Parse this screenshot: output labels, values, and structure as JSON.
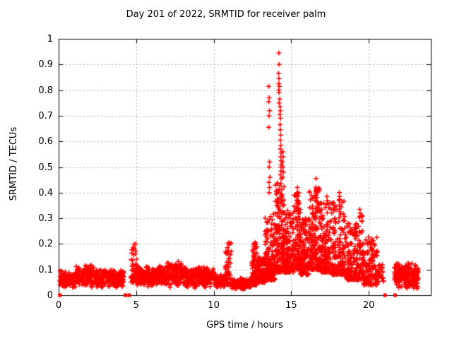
{
  "title": "Day 201 of 2022, SRMTID for receiver palm",
  "axes": {
    "x": {
      "label": "GPS time / hours"
    },
    "y": {
      "label": "SRMTID / TECUs"
    }
  },
  "chart_data": {
    "type": "scatter",
    "title": "Day 201 of 2022, SRMTID for receiver palm",
    "xlabel": "GPS time / hours",
    "ylabel": "SRMTID / TECUs",
    "xlim": [
      0,
      24
    ],
    "ylim": [
      0,
      1
    ],
    "xticks": {
      "values": [
        0,
        5,
        10,
        15,
        20
      ],
      "labels": [
        "0",
        "5",
        "10",
        "15",
        "20"
      ]
    },
    "yticks": {
      "values": [
        0,
        0.1,
        0.2,
        0.3,
        0.4,
        0.5,
        0.6,
        0.7,
        0.8,
        0.9,
        1
      ],
      "labels": [
        "0",
        "0.1",
        "0.2",
        "0.3",
        "0.4",
        "0.5",
        "0.6",
        "0.7",
        "0.8",
        "0.9",
        "1"
      ]
    },
    "grid": true,
    "legend": "none",
    "marker": "plus",
    "marker_size": 7,
    "marker_color": "#ff0000",
    "grid_color": "#b4b4b4",
    "border_color": "#000000",
    "seed": 1234,
    "band_segments": [
      {
        "x0": 0.07,
        "x1": 0.35,
        "n": 40,
        "ymin": 0.02,
        "ymax": 0.1,
        "dist": "tri"
      },
      {
        "x0": 0.35,
        "x1": 1.1,
        "n": 90,
        "ymin": 0.025,
        "ymax": 0.095,
        "dist": "tri"
      },
      {
        "x0": 1.1,
        "x1": 2.3,
        "n": 150,
        "ymin": 0.03,
        "ymax": 0.125,
        "dist": "tri",
        "columns": 26
      },
      {
        "x0": 2.3,
        "x1": 4.2,
        "n": 220,
        "ymin": 0.025,
        "ymax": 0.105,
        "dist": "tri",
        "columns": 40
      },
      {
        "x0": 4.65,
        "x1": 5.05,
        "n": 55,
        "ymin": 0.05,
        "ymax": 0.2,
        "dist": "low",
        "columns": 8
      },
      {
        "x0": 5.05,
        "x1": 7.0,
        "n": 240,
        "ymin": 0.03,
        "ymax": 0.12,
        "dist": "tri",
        "columns": 40
      },
      {
        "x0": 7.0,
        "x1": 8.1,
        "n": 140,
        "ymin": 0.03,
        "ymax": 0.145,
        "dist": "tri",
        "columns": 22
      },
      {
        "x0": 8.1,
        "x1": 10.1,
        "n": 240,
        "ymin": 0.025,
        "ymax": 0.115,
        "dist": "tri",
        "columns": 40
      },
      {
        "x0": 10.1,
        "x1": 10.75,
        "n": 70,
        "ymin": 0.02,
        "ymax": 0.085,
        "dist": "tri"
      },
      {
        "x0": 10.75,
        "x1": 11.15,
        "n": 55,
        "ymin": 0.04,
        "ymax": 0.205,
        "dist": "low",
        "columns": 8
      },
      {
        "x0": 11.15,
        "x1": 12.45,
        "n": 150,
        "ymin": 0.02,
        "ymax": 0.07,
        "dist": "tri",
        "columns": 26
      },
      {
        "x0": 12.45,
        "x1": 12.8,
        "n": 80,
        "ymin": 0.04,
        "ymax": 0.21,
        "dist": "low",
        "columns": 6
      },
      {
        "x0": 12.8,
        "x1": 13.3,
        "n": 90,
        "ymin": 0.05,
        "ymax": 0.15,
        "dist": "low",
        "columns": 8
      },
      {
        "x0": 13.3,
        "x1": 13.95,
        "n": 150,
        "ymin": 0.06,
        "ymax": 0.32,
        "dist": "low",
        "columns": 12
      },
      {
        "x0": 13.95,
        "x1": 14.55,
        "n": 170,
        "ymin": 0.09,
        "ymax": 0.44,
        "dist": "low",
        "columns": 10
      },
      {
        "x0": 14.55,
        "x1": 15.15,
        "n": 150,
        "ymin": 0.09,
        "ymax": 0.33,
        "dist": "low",
        "columns": 10
      },
      {
        "x0": 15.15,
        "x1": 15.6,
        "n": 110,
        "ymin": 0.1,
        "ymax": 0.4,
        "dist": "low",
        "columns": 8
      },
      {
        "x0": 15.6,
        "x1": 16.15,
        "n": 130,
        "ymin": 0.08,
        "ymax": 0.3,
        "dist": "low",
        "columns": 10
      },
      {
        "x0": 16.15,
        "x1": 16.85,
        "n": 160,
        "ymin": 0.1,
        "ymax": 0.42,
        "dist": "low",
        "columns": 12
      },
      {
        "x0": 16.85,
        "x1": 17.6,
        "n": 150,
        "ymin": 0.09,
        "ymax": 0.36,
        "dist": "low",
        "columns": 12
      },
      {
        "x0": 17.6,
        "x1": 18.45,
        "n": 170,
        "ymin": 0.08,
        "ymax": 0.38,
        "dist": "low",
        "columns": 14
      },
      {
        "x0": 18.45,
        "x1": 19.3,
        "n": 150,
        "ymin": 0.06,
        "ymax": 0.28,
        "dist": "low",
        "columns": 14
      },
      {
        "x0": 19.3,
        "x1": 19.65,
        "n": 60,
        "ymin": 0.06,
        "ymax": 0.33,
        "dist": "low",
        "columns": 6
      },
      {
        "x0": 19.65,
        "x1": 20.55,
        "n": 130,
        "ymin": 0.04,
        "ymax": 0.23,
        "dist": "low",
        "columns": 14
      },
      {
        "x0": 20.55,
        "x1": 20.95,
        "n": 25,
        "ymin": 0.03,
        "ymax": 0.13,
        "dist": "tri"
      },
      {
        "x0": 21.65,
        "x1": 22.15,
        "n": 80,
        "ymin": 0.02,
        "ymax": 0.135,
        "dist": "tri",
        "columns": 8
      },
      {
        "x0": 22.2,
        "x1": 23.2,
        "n": 150,
        "ymin": 0.02,
        "ymax": 0.13,
        "dist": "tri",
        "columns": 16
      }
    ],
    "peak_points": [
      [
        13.55,
        0.815
      ],
      [
        13.58,
        0.77
      ],
      [
        13.55,
        0.755
      ],
      [
        13.6,
        0.72
      ],
      [
        13.57,
        0.7
      ],
      [
        13.55,
        0.655
      ],
      [
        13.6,
        0.52
      ],
      [
        13.57,
        0.5
      ],
      [
        13.62,
        0.46
      ],
      [
        13.56,
        0.44
      ],
      [
        13.6,
        0.42
      ],
      [
        13.58,
        0.4
      ],
      [
        14.2,
        0.945
      ],
      [
        14.22,
        0.9
      ],
      [
        14.18,
        0.865
      ],
      [
        14.21,
        0.845
      ],
      [
        14.2,
        0.825
      ],
      [
        14.23,
        0.815
      ],
      [
        14.2,
        0.8
      ],
      [
        14.22,
        0.79
      ],
      [
        14.25,
        0.765
      ],
      [
        14.22,
        0.75
      ],
      [
        14.28,
        0.735
      ],
      [
        14.3,
        0.72
      ],
      [
        14.27,
        0.705
      ],
      [
        14.3,
        0.69
      ],
      [
        14.28,
        0.665
      ],
      [
        14.3,
        0.645
      ],
      [
        14.32,
        0.625
      ],
      [
        14.3,
        0.605
      ],
      [
        14.33,
        0.585
      ],
      [
        14.3,
        0.57
      ],
      [
        14.35,
        0.555
      ],
      [
        14.32,
        0.54
      ],
      [
        14.34,
        0.525
      ],
      [
        14.36,
        0.51
      ],
      [
        14.33,
        0.5
      ],
      [
        14.35,
        0.485
      ],
      [
        14.3,
        0.47
      ],
      [
        14.36,
        0.455
      ],
      [
        14.45,
        0.56
      ],
      [
        14.48,
        0.54
      ],
      [
        14.44,
        0.52
      ],
      [
        14.47,
        0.5
      ],
      [
        14.5,
        0.48
      ],
      [
        14.46,
        0.46
      ],
      [
        15.4,
        0.42
      ],
      [
        15.38,
        0.4
      ],
      [
        15.42,
        0.385
      ],
      [
        15.4,
        0.37
      ],
      [
        15.44,
        0.355
      ],
      [
        15.38,
        0.34
      ],
      [
        16.6,
        0.455
      ],
      [
        16.58,
        0.42
      ],
      [
        16.62,
        0.41
      ],
      [
        16.6,
        0.395
      ],
      [
        16.57,
        0.38
      ],
      [
        16.63,
        0.37
      ],
      [
        17.3,
        0.385
      ],
      [
        17.32,
        0.37
      ],
      [
        17.28,
        0.355
      ],
      [
        18.1,
        0.4
      ],
      [
        18.12,
        0.385
      ],
      [
        18.08,
        0.37
      ],
      [
        19.42,
        0.335
      ],
      [
        19.44,
        0.32
      ]
    ],
    "zero_marker_x": [
      0.08,
      4.3,
      4.55,
      21.05,
      21.7
    ],
    "zero_marker": "filled-square"
  }
}
